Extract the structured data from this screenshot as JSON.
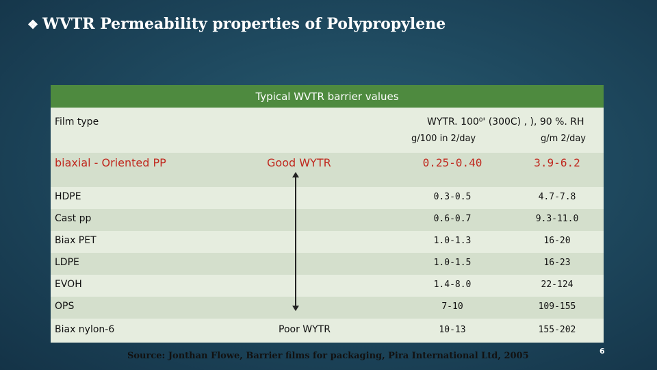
{
  "slide": {
    "bullet": "❖",
    "title": "WVTR Permeability properties of Polypropylene",
    "source": "Source: Jonthan Flowe, Barrier films for packaging, Pira International Ltd, 2005",
    "page_number": "6"
  },
  "table": {
    "title": "Typical WVTR barrier values",
    "header": {
      "film_type": "Film type",
      "wvtr_condition": "WYTR. 100⁰' (300C) , ), 90 %. RH",
      "unit_1": "g/100 in 2/day",
      "unit_2": "g/m 2/day"
    },
    "rows": [
      {
        "film": "biaxial - Oriented PP",
        "note": "Good WYTR",
        "v1": "0.25-0.40",
        "v2": "3.9-6.2"
      },
      {
        "film": "HDPE",
        "note": "",
        "v1": "0.3-0.5",
        "v2": "4.7-7.8"
      },
      {
        "film": "Cast pp",
        "note": "",
        "v1": "0.6-0.7",
        "v2": "9.3-11.0"
      },
      {
        "film": "Biax PET",
        "note": "",
        "v1": "1.0-1.3",
        "v2": "16-20"
      },
      {
        "film": "LDPE",
        "note": "",
        "v1": "1.0-1.5",
        "v2": "16-23"
      },
      {
        "film": "EVOH",
        "note": "",
        "v1": "1.4-8.0",
        "v2": "22-124"
      },
      {
        "film": "OPS",
        "note": "",
        "v1": "7-10",
        "v2": "109-155"
      },
      {
        "film": "Biax nylon-6",
        "note": "Poor WYTR",
        "v1": "10-13",
        "v2": "155-202"
      }
    ]
  },
  "colors": {
    "header_bg": "#4e8a3f",
    "emphasis": "#c0281e",
    "background": "#1f4a60"
  }
}
